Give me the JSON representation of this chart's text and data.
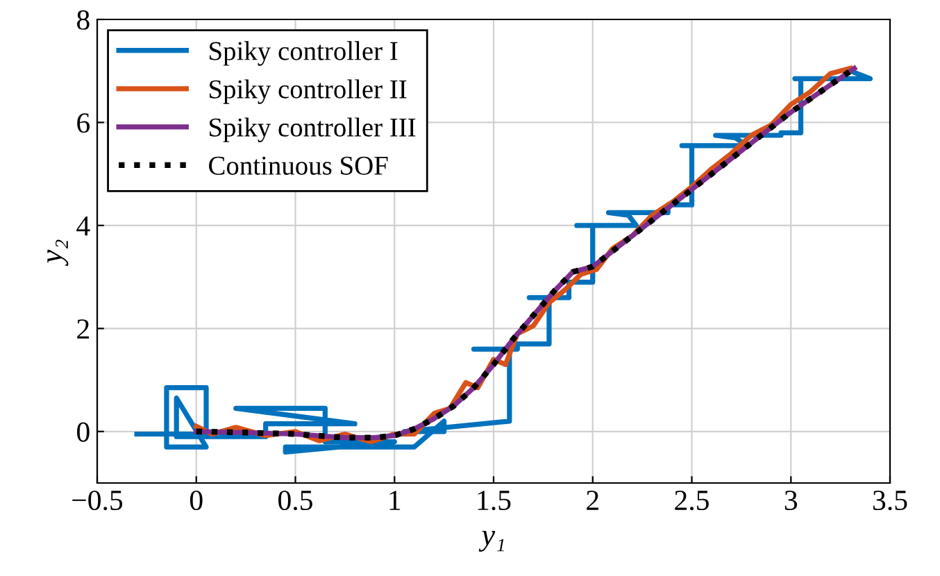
{
  "chart_data": {
    "type": "line",
    "xlabel": "y₁",
    "ylabel": "y₂",
    "xlim": [
      -0.5,
      3.5
    ],
    "ylim": [
      -1,
      8
    ],
    "xticks": [
      {
        "value": -0.5,
        "label": "−0.5"
      },
      0,
      0.5,
      1,
      1.5,
      2,
      2.5,
      3,
      3.5
    ],
    "yticks": [
      0,
      2,
      4,
      6,
      8
    ],
    "grid": true,
    "legend": "top left",
    "series": [
      {
        "name": "Spiky controller I",
        "color": "#0072bd",
        "line_style": "solid",
        "x": [
          -0.3,
          0.05,
          0.05,
          -0.15,
          -0.15,
          0.05,
          -0.1,
          -0.1,
          0.35,
          0.35,
          0.8,
          0.2,
          0.65,
          0.65,
          1.0,
          0.45,
          0.45,
          1.1,
          1.25,
          1.25,
          1.05,
          1.58,
          1.58,
          1.4,
          1.62,
          1.62,
          1.78,
          1.78,
          1.68,
          1.88,
          1.88,
          2.0,
          2.0,
          1.92,
          2.22,
          2.18,
          2.18,
          2.08,
          2.38,
          2.38,
          2.5,
          2.5,
          2.45,
          2.78,
          2.72,
          2.72,
          2.62,
          2.95,
          2.95,
          3.05,
          3.05,
          3.02,
          3.4,
          3.3
        ],
        "values": [
          -0.05,
          -0.05,
          0.85,
          0.85,
          -0.3,
          -0.3,
          0.65,
          -0.1,
          -0.1,
          0.15,
          0.15,
          0.45,
          0.45,
          -0.2,
          -0.2,
          -0.4,
          -0.3,
          -0.3,
          0.2,
          0.0,
          0.0,
          0.2,
          1.6,
          1.6,
          1.6,
          1.7,
          1.7,
          2.6,
          2.6,
          2.6,
          2.9,
          2.9,
          4.0,
          4.0,
          4.0,
          4.2,
          4.2,
          4.25,
          4.25,
          4.4,
          4.4,
          5.55,
          5.55,
          5.55,
          5.7,
          5.7,
          5.75,
          5.75,
          5.8,
          5.8,
          6.85,
          6.85,
          6.85,
          7.0
        ]
      },
      {
        "name": "Spiky controller II",
        "color": "#d95319",
        "line_style": "solid",
        "x": [
          0.0,
          0.08,
          0.2,
          0.35,
          0.5,
          0.62,
          0.75,
          0.88,
          1.0,
          1.1,
          1.2,
          1.28,
          1.36,
          1.42,
          1.5,
          1.56,
          1.62,
          1.7,
          1.78,
          1.86,
          1.94,
          2.02,
          2.1,
          2.2,
          2.3,
          2.4,
          2.5,
          2.6,
          2.7,
          2.8,
          2.9,
          3.0,
          3.1,
          3.2,
          3.3
        ],
        "values": [
          0.1,
          -0.05,
          0.08,
          -0.08,
          0.0,
          -0.18,
          -0.05,
          -0.2,
          -0.05,
          -0.05,
          0.35,
          0.45,
          0.95,
          0.85,
          1.4,
          1.3,
          1.9,
          2.05,
          2.5,
          2.75,
          3.05,
          3.15,
          3.55,
          3.8,
          4.2,
          4.45,
          4.75,
          5.1,
          5.4,
          5.75,
          5.95,
          6.35,
          6.6,
          6.95,
          7.05
        ]
      },
      {
        "name": "Spiky controller III",
        "color": "#7e2f8e",
        "line_style": "solid",
        "x": [
          0.0,
          0.25,
          0.5,
          0.75,
          0.9,
          1.0,
          1.1,
          1.2,
          1.3,
          1.4,
          1.5,
          1.6,
          1.7,
          1.8,
          1.9,
          2.0,
          2.5,
          3.0,
          3.32
        ],
        "values": [
          0.0,
          -0.02,
          -0.05,
          -0.12,
          -0.12,
          -0.08,
          0.05,
          0.25,
          0.5,
          0.85,
          1.3,
          1.8,
          2.25,
          2.7,
          3.1,
          3.2,
          4.7,
          6.2,
          7.05
        ]
      },
      {
        "name": "Continuous SOF",
        "color": "#000000",
        "line_style": "dotted",
        "x": [
          0.0,
          0.25,
          0.5,
          0.75,
          0.9,
          1.0,
          1.1,
          1.2,
          1.3,
          1.4,
          1.5,
          1.6,
          1.7,
          1.8,
          1.9,
          2.0,
          2.5,
          3.0,
          3.32
        ],
        "values": [
          0.0,
          -0.02,
          -0.05,
          -0.12,
          -0.12,
          -0.08,
          0.05,
          0.25,
          0.5,
          0.85,
          1.3,
          1.8,
          2.25,
          2.7,
          3.1,
          3.2,
          4.7,
          6.2,
          7.05
        ]
      }
    ]
  }
}
